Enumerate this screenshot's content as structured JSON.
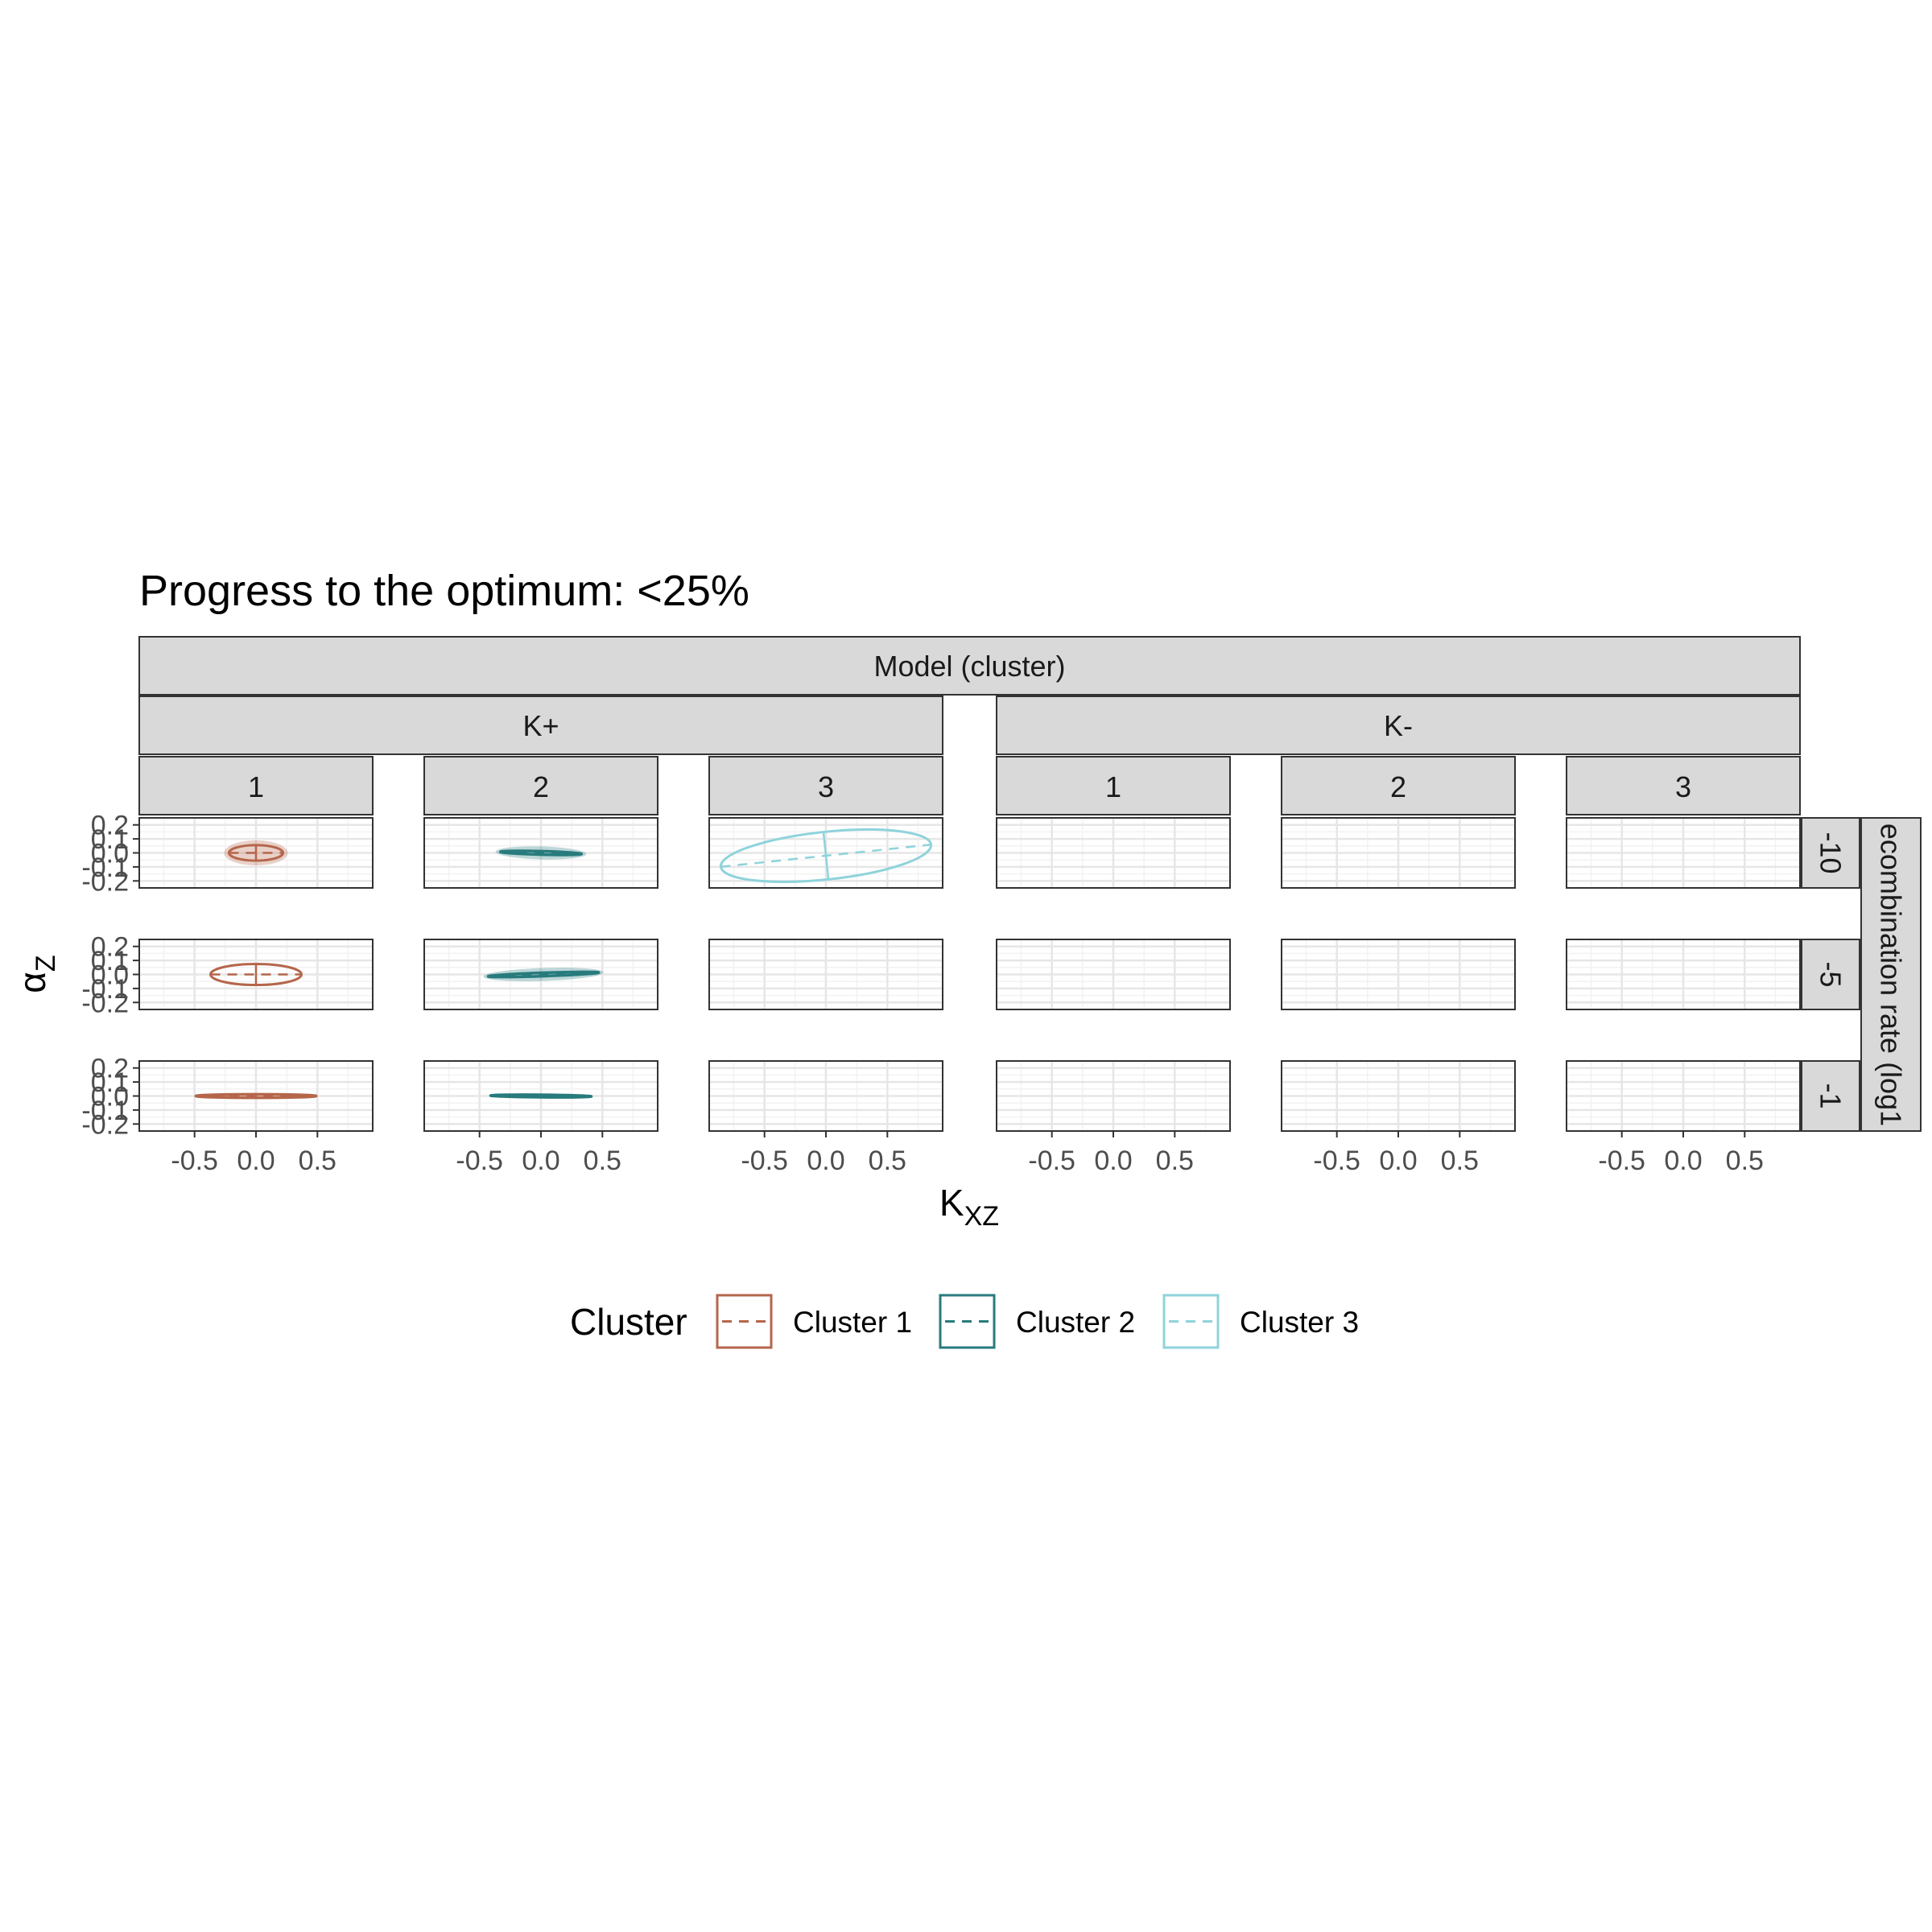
{
  "title": "Progress to the optimum: <25%",
  "chart_data": {
    "type": "scatter",
    "title": "Progress to the optimum: <25%",
    "facet_top_title": "Model (cluster)",
    "models": [
      "K+",
      "K-"
    ],
    "clusters": [
      "1",
      "2",
      "3"
    ],
    "facet_right_title": "ecombination rate (log1",
    "rows": [
      "-10",
      "-5",
      "-1"
    ],
    "xlabel_main": "K",
    "xlabel_sub": "XZ",
    "ylabel_main": "α",
    "ylabel_sub": "Z",
    "xlim": [
      -0.95,
      0.95
    ],
    "ylim": [
      -0.25,
      0.25
    ],
    "x_ticks": [
      -0.5,
      0.0,
      0.5
    ],
    "x_tick_labels": [
      "-0.5",
      "0.0",
      "0.5"
    ],
    "y_ticks": [
      -0.2,
      -0.1,
      0.0,
      0.1,
      0.2
    ],
    "y_tick_labels": [
      "-0.2",
      "-0.1",
      "0.0",
      "0.1",
      "0.2"
    ],
    "grid": true,
    "legend": {
      "title": "Cluster",
      "position": "bottom",
      "entries": [
        {
          "label": "Cluster 1",
          "color": "#B5664B"
        },
        {
          "label": "Cluster 2",
          "color": "#287B7D"
        },
        {
          "label": "Cluster 3",
          "color": "#8FD3DB"
        }
      ]
    },
    "ellipses": [
      {
        "model": "K+",
        "cluster": "1",
        "row": "-10",
        "series": "Cluster 1",
        "cx": 0.0,
        "cy": 0.0,
        "rx": 0.22,
        "ry": 0.055,
        "angle": 0,
        "cross": true,
        "halo": true
      },
      {
        "model": "K+",
        "cluster": "1",
        "row": "-5",
        "series": "Cluster 1",
        "cx": 0.0,
        "cy": 0.0,
        "rx": 0.37,
        "ry": 0.075,
        "angle": 0,
        "cross": true,
        "halo": false
      },
      {
        "model": "K+",
        "cluster": "1",
        "row": "-1",
        "series": "Cluster 1",
        "cx": 0.0,
        "cy": 0.0,
        "rx": 0.49,
        "ry": 0.012,
        "angle": 0,
        "cross": true,
        "halo": false
      },
      {
        "model": "K+",
        "cluster": "2",
        "row": "-10",
        "series": "Cluster 2",
        "cx": 0.0,
        "cy": 0.0,
        "rx": 0.33,
        "ry": 0.012,
        "angle": 1.5,
        "cross": false,
        "halo": true
      },
      {
        "model": "K+",
        "cluster": "2",
        "row": "-5",
        "series": "Cluster 2",
        "cx": 0.02,
        "cy": 0.0,
        "rx": 0.45,
        "ry": 0.012,
        "angle": -2,
        "cross": false,
        "halo": true
      },
      {
        "model": "K+",
        "cluster": "2",
        "row": "-1",
        "series": "Cluster 2",
        "cx": 0.0,
        "cy": 0.0,
        "rx": 0.41,
        "ry": 0.006,
        "angle": 0.5,
        "cross": false,
        "halo": false
      },
      {
        "model": "K+",
        "cluster": "3",
        "row": "-10",
        "series": "Cluster 3",
        "cx": 0.0,
        "cy": -0.02,
        "rx": 0.86,
        "ry": 0.17,
        "angle": -6,
        "cross": true,
        "halo": false
      }
    ]
  }
}
